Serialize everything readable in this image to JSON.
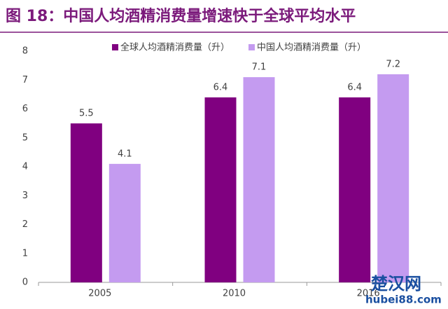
{
  "chart_data": {
    "type": "bar",
    "title": "图 18：中国人均酒精消费量增速快于全球平均水平",
    "categories": [
      "2005",
      "2010",
      "2016"
    ],
    "series": [
      {
        "name": "全球人均酒精消费量（升）",
        "color": "#800080",
        "values": [
          5.5,
          6.4,
          6.4
        ]
      },
      {
        "name": "中国人均酒精消费量（升）",
        "color": "#c49bf0",
        "values": [
          4.1,
          7.1,
          7.2
        ]
      }
    ],
    "ylim": [
      0,
      8
    ],
    "yticks": [
      0,
      1,
      2,
      3,
      4,
      5,
      6,
      7,
      8
    ],
    "grid": false,
    "legend": "top"
  },
  "watermark": {
    "name": "楚汉网",
    "url": "hubei88.com"
  }
}
